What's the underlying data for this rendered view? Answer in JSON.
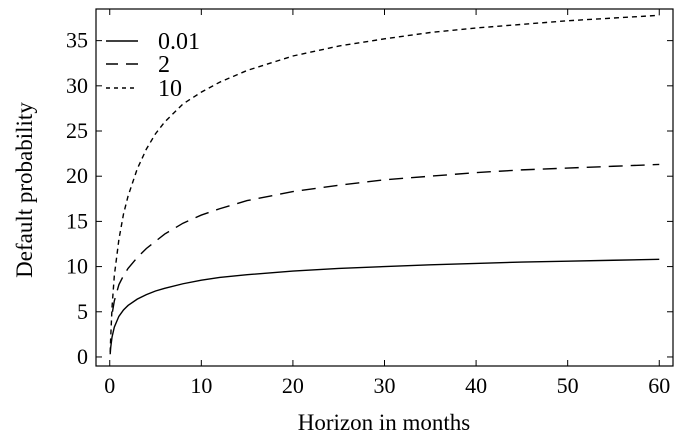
{
  "chart_data": {
    "type": "line",
    "title": "",
    "xlabel": "Horizon in months",
    "ylabel": "Default probability",
    "xlim": [
      -1.5,
      61.5
    ],
    "ylim": [
      -1,
      38.5
    ],
    "xticks": [
      0,
      10,
      20,
      30,
      40,
      50,
      60
    ],
    "yticks": [
      0,
      5,
      10,
      15,
      20,
      25,
      30,
      35
    ],
    "grid": false,
    "legend": "top-left",
    "colors": {
      "line": "#000000",
      "frame": "#000000"
    },
    "series": [
      {
        "name": "0.01",
        "style": "solid",
        "x": [
          0.05,
          0.1,
          0.25,
          0.5,
          1,
          1.5,
          2,
          3,
          4,
          5,
          6,
          8,
          10,
          12,
          15,
          20,
          25,
          30,
          35,
          40,
          45,
          50,
          55,
          60
        ],
        "y": [
          0.3,
          1.0,
          2.2,
          3.3,
          4.5,
          5.2,
          5.7,
          6.4,
          6.9,
          7.3,
          7.6,
          8.1,
          8.5,
          8.8,
          9.1,
          9.5,
          9.8,
          10.0,
          10.2,
          10.35,
          10.5,
          10.6,
          10.7,
          10.8
        ]
      },
      {
        "name": "2",
        "style": "dashed",
        "x": [
          0.3,
          0.5,
          1,
          1.5,
          2,
          3,
          4,
          5,
          6,
          8,
          10,
          12,
          15,
          20,
          25,
          30,
          35,
          40,
          45,
          50,
          55,
          60
        ],
        "y": [
          5.0,
          6.2,
          8.0,
          9.0,
          9.8,
          11.0,
          12.0,
          12.8,
          13.6,
          14.8,
          15.7,
          16.4,
          17.3,
          18.3,
          19.0,
          19.6,
          20.0,
          20.4,
          20.7,
          20.9,
          21.1,
          21.3
        ]
      },
      {
        "name": "10",
        "style": "dotted",
        "x": [
          0.05,
          0.1,
          0.25,
          0.5,
          1,
          1.5,
          2,
          3,
          4,
          5,
          6,
          8,
          10,
          12,
          15,
          20,
          25,
          30,
          35,
          40,
          45,
          50,
          55,
          60
        ],
        "y": [
          0.5,
          2.0,
          5.5,
          9.0,
          13.0,
          15.8,
          17.8,
          20.8,
          23.0,
          24.7,
          26.0,
          28.0,
          29.3,
          30.4,
          31.7,
          33.3,
          34.4,
          35.2,
          35.9,
          36.4,
          36.8,
          37.2,
          37.5,
          37.8
        ]
      }
    ]
  }
}
